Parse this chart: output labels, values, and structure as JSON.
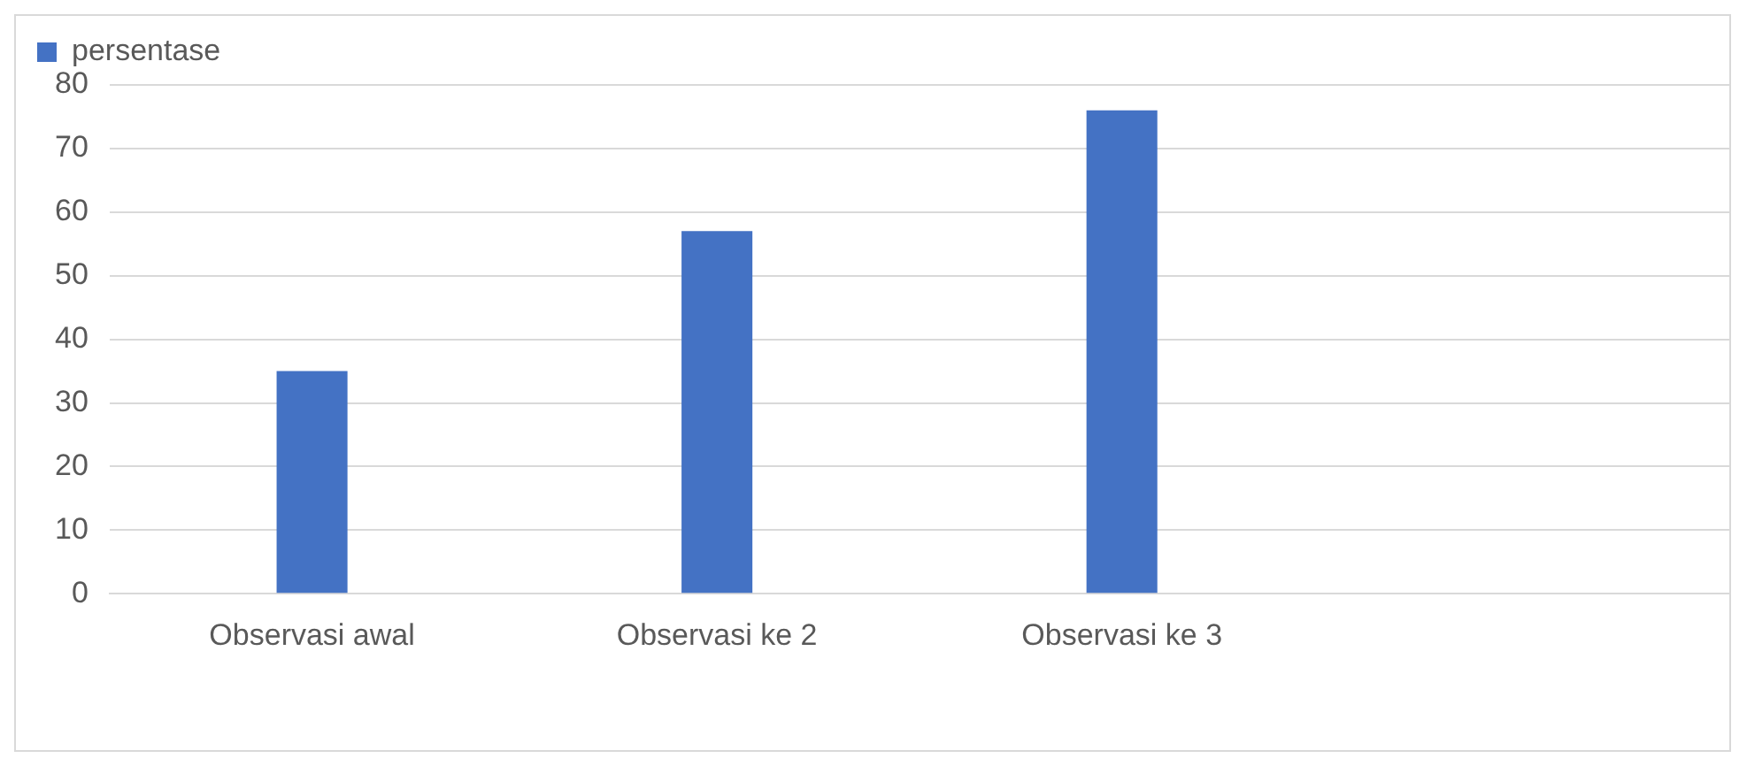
{
  "chart_data": {
    "type": "bar",
    "categories": [
      "Observasi awal",
      "Observasi ke 2",
      "Observasi ke 3",
      null
    ],
    "series": [
      {
        "name": "persentase",
        "color": "#4472c4",
        "values": [
          35,
          57,
          76,
          null
        ]
      }
    ],
    "ylim": [
      0,
      80
    ],
    "yticks": [
      0,
      10,
      20,
      30,
      40,
      50,
      60,
      70,
      80
    ],
    "grid": "y",
    "legend": "top left"
  }
}
